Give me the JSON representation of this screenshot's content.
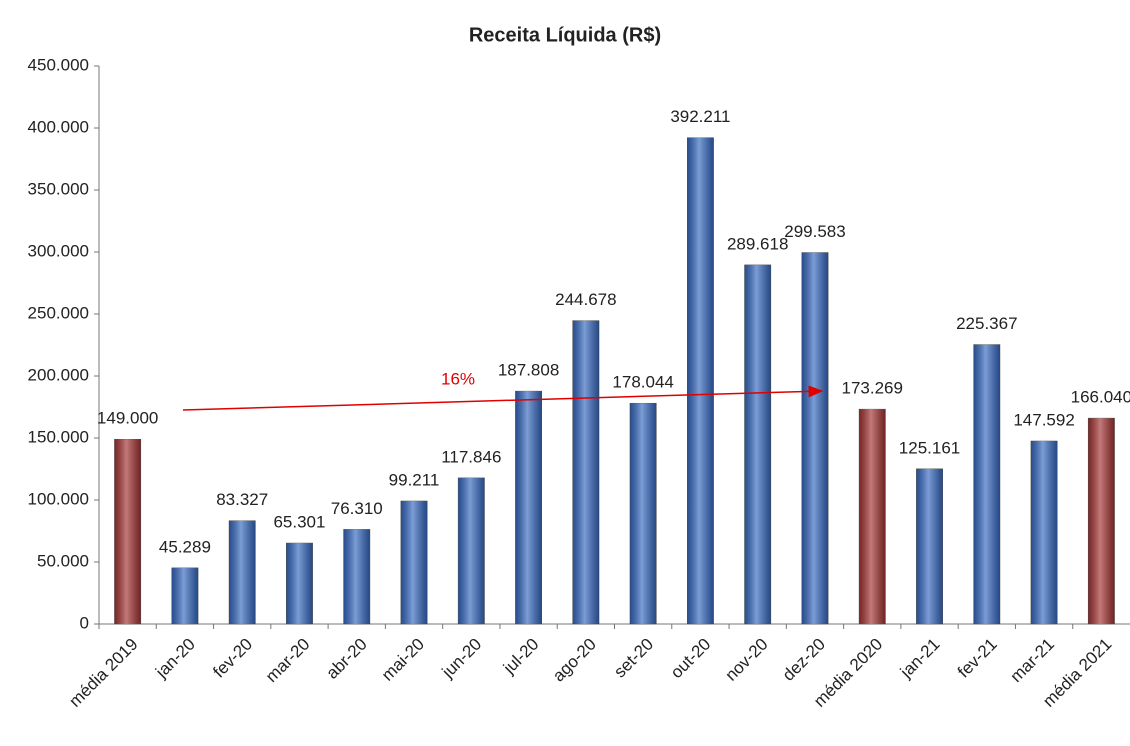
{
  "chart_data": {
    "type": "bar",
    "title": "Receita Líquida (R$)",
    "categories": [
      "média 2019",
      "jan-20",
      "fev-20",
      "mar-20",
      "abr-20",
      "mai-20",
      "jun-20",
      "jul-20",
      "ago-20",
      "set-20",
      "out-20",
      "nov-20",
      "dez-20",
      "média 2020",
      "jan-21",
      "fev-21",
      "mar-21",
      "média 2021"
    ],
    "values": [
      149000,
      45289,
      83327,
      65301,
      76310,
      99211,
      117846,
      187808,
      244678,
      178044,
      392211,
      289618,
      299583,
      173269,
      125161,
      225367,
      147592,
      166040
    ],
    "value_labels": [
      "149.000",
      "45.289",
      "83.327",
      "65.301",
      "76.310",
      "99.211",
      "117.846",
      "187.808",
      "244.678",
      "178.044",
      "392.211",
      "289.618",
      "299.583",
      "173.269",
      "125.161",
      "225.367",
      "147.592",
      "166.040"
    ],
    "colors": [
      "#a33232",
      "#3568c0",
      "#3568c0",
      "#3568c0",
      "#3568c0",
      "#3568c0",
      "#3568c0",
      "#3568c0",
      "#3568c0",
      "#3568c0",
      "#3568c0",
      "#3568c0",
      "#3568c0",
      "#a33232",
      "#3568c0",
      "#3568c0",
      "#3568c0",
      "#a33232"
    ],
    "ylim": [
      0,
      450000
    ],
    "yticks": [
      0,
      {
        "value": 50000,
        "label": "50.000"
      },
      {
        "value": 100000,
        "label": "100.000"
      },
      {
        "value": 150000,
        "label": "150.000"
      },
      {
        "value": 200000,
        "label": "200.000"
      },
      {
        "value": 250000,
        "label": "250.000"
      },
      {
        "value": 300000,
        "label": "300.000"
      },
      {
        "value": 350000,
        "label": "350.000"
      },
      {
        "value": 400000,
        "label": "400.000"
      },
      {
        "value": 450000,
        "label": "450.000"
      }
    ],
    "grid": false,
    "annotation": "16%"
  }
}
